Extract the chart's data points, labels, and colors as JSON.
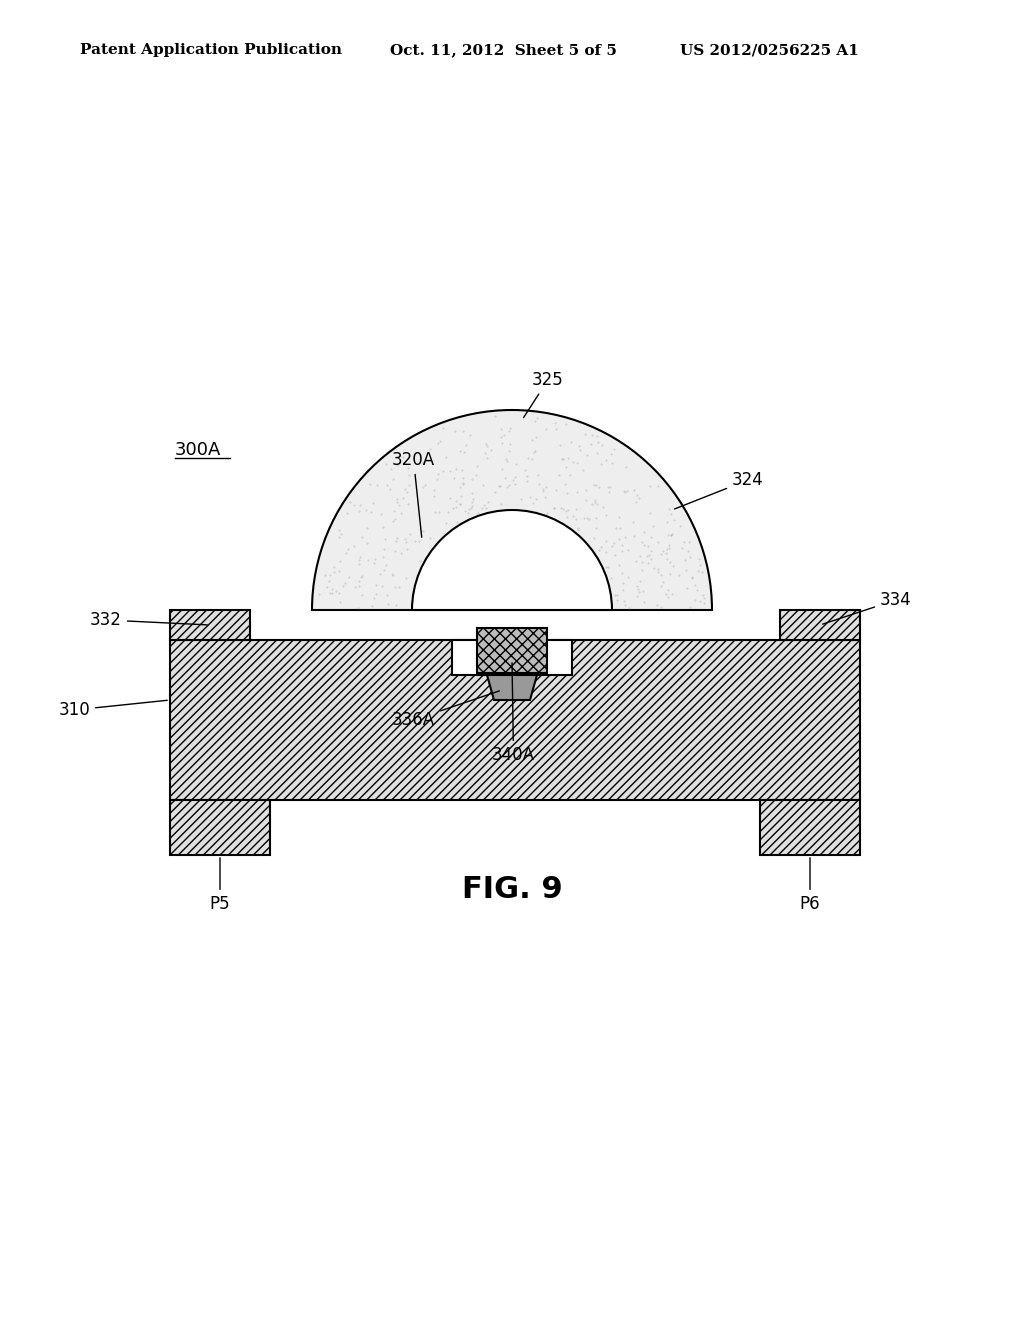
{
  "bg_color": "#ffffff",
  "header_left": "Patent Application Publication",
  "header_mid": "Oct. 11, 2012  Sheet 5 of 5",
  "header_right": "US 2012/0256225 A1",
  "fig_label": "FIG. 9",
  "label_300A": "300A",
  "label_310": "310",
  "label_320A": "320A",
  "label_324": "324",
  "label_325": "325",
  "label_332": "332",
  "label_334": "334",
  "label_336A": "336A",
  "label_340A": "340A",
  "label_P5": "P5",
  "label_P6": "P6",
  "hatch_color": "#555555",
  "outline_color": "#000000",
  "fill_light": "#e8e8e8",
  "fill_medium": "#cccccc"
}
